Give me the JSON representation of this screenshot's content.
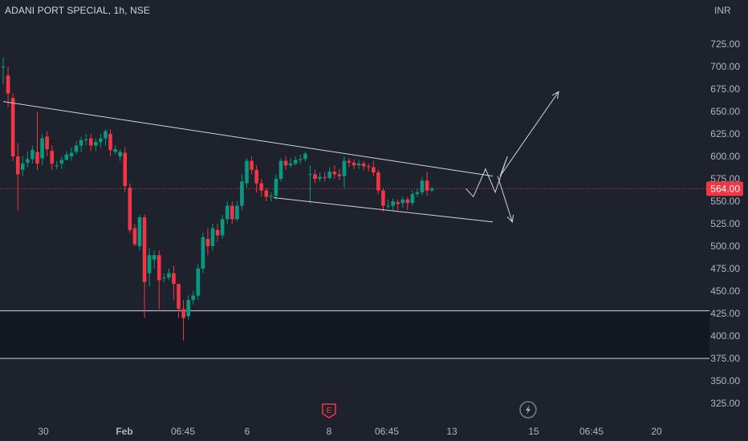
{
  "header": {
    "title": "ADANI PORT SPECIAL, 1h, NSE"
  },
  "currency": "INR",
  "colors": {
    "background": "#1e222d",
    "up": "#089981",
    "down": "#f23645",
    "drawing": "#d1d4dc",
    "price_line": "#f23645"
  },
  "icons": [
    "earnings-icon",
    "lightning-icon"
  ],
  "chart_data": {
    "type": "candlestick",
    "title": "ADANI PORT SPECIAL, 1h, NSE",
    "ylim": [
      300,
      763
    ],
    "y_ticks": [
      "725.00",
      "700.00",
      "675.00",
      "650.00",
      "625.00",
      "600.00",
      "575.00",
      "550.00",
      "525.00",
      "500.00",
      "475.00",
      "450.00",
      "425.00",
      "400.00",
      "375.00",
      "350.00",
      "325.00"
    ],
    "y_tick_values": [
      725,
      700,
      675,
      650,
      625,
      600,
      575,
      550,
      525,
      500,
      475,
      450,
      425,
      400,
      375,
      350,
      325
    ],
    "x_ticks": [
      "30",
      "Feb",
      "06:45",
      "6",
      "8",
      "06:45",
      "13",
      "15",
      "06:45",
      "20"
    ],
    "bold_x_ticks": [
      "Feb"
    ],
    "last_price": "564.00",
    "last_price_value": 564,
    "horizontal_levels": [
      428,
      375
    ],
    "zone": [
      375,
      428
    ],
    "candles": [
      [
        700,
        700,
        680,
        710
      ],
      [
        690,
        670,
        655,
        700
      ],
      [
        665,
        600,
        595,
        670
      ],
      [
        600,
        580,
        540,
        615
      ],
      [
        585,
        592,
        578,
        600
      ],
      [
        593,
        597,
        588,
        605
      ],
      [
        597,
        607,
        592,
        612
      ],
      [
        605,
        592,
        585,
        650
      ],
      [
        598,
        620,
        590,
        625
      ],
      [
        622,
        608,
        600,
        628
      ],
      [
        606,
        592,
        585,
        612
      ],
      [
        590,
        590,
        586,
        595
      ],
      [
        592,
        596,
        586,
        600
      ],
      [
        596,
        602,
        596,
        606
      ],
      [
        600,
        604,
        595,
        610
      ],
      [
        605,
        612,
        602,
        617
      ],
      [
        612,
        618,
        605,
        622
      ],
      [
        618,
        619,
        612,
        625
      ],
      [
        620,
        612,
        606,
        625
      ],
      [
        612,
        616,
        606,
        620
      ],
      [
        616,
        620,
        610,
        625
      ],
      [
        620,
        628,
        612,
        630
      ],
      [
        625,
        607,
        600,
        630
      ],
      [
        605,
        608,
        602,
        612
      ],
      [
        600,
        605,
        595,
        608
      ],
      [
        604,
        567,
        560,
        610
      ],
      [
        565,
        518,
        515,
        570
      ],
      [
        520,
        502,
        500,
        525
      ],
      [
        500,
        532,
        495,
        535
      ],
      [
        532,
        460,
        420,
        535
      ],
      [
        470,
        490,
        455,
        498
      ],
      [
        485,
        490,
        475,
        495
      ],
      [
        490,
        462,
        430,
        495
      ],
      [
        465,
        465,
        460,
        470
      ],
      [
        465,
        470,
        462,
        475
      ],
      [
        470,
        458,
        440,
        478
      ],
      [
        458,
        430,
        420,
        458
      ],
      [
        430,
        420,
        395,
        440
      ],
      [
        422,
        440,
        418,
        445
      ],
      [
        440,
        445,
        435,
        450
      ],
      [
        445,
        475,
        440,
        480
      ],
      [
        475,
        510,
        470,
        515
      ],
      [
        508,
        500,
        490,
        520
      ],
      [
        500,
        520,
        495,
        525
      ],
      [
        518,
        512,
        505,
        525
      ],
      [
        512,
        530,
        508,
        535
      ],
      [
        530,
        545,
        525,
        550
      ],
      [
        545,
        530,
        525,
        550
      ],
      [
        530,
        545,
        528,
        550
      ],
      [
        545,
        572,
        540,
        580
      ],
      [
        570,
        595,
        565,
        598
      ],
      [
        595,
        585,
        580,
        600
      ],
      [
        585,
        570,
        560,
        590
      ],
      [
        570,
        562,
        555,
        575
      ],
      [
        562,
        555,
        550,
        565
      ],
      [
        555,
        556,
        550,
        560
      ],
      [
        556,
        575,
        552,
        580
      ],
      [
        575,
        595,
        572,
        598
      ],
      [
        595,
        590,
        585,
        600
      ],
      [
        590,
        592,
        587,
        598
      ],
      [
        592,
        596,
        590,
        600
      ],
      [
        596,
        597,
        592,
        602
      ],
      [
        597,
        603,
        594,
        605
      ],
      [
        580,
        580,
        548,
        590
      ],
      [
        580,
        575,
        570,
        585
      ],
      [
        575,
        577,
        572,
        582
      ],
      [
        577,
        576,
        572,
        582
      ],
      [
        576,
        583,
        574,
        588
      ],
      [
        583,
        580,
        575,
        590
      ],
      [
        580,
        578,
        574,
        586
      ],
      [
        578,
        595,
        565,
        600
      ],
      [
        595,
        593,
        588,
        598
      ],
      [
        593,
        590,
        586,
        597
      ],
      [
        590,
        592,
        586,
        596
      ],
      [
        592,
        589,
        585,
        595
      ],
      [
        589,
        588,
        583,
        592
      ],
      [
        588,
        582,
        578,
        595
      ],
      [
        582,
        562,
        558,
        585
      ],
      [
        562,
        545,
        538,
        565
      ],
      [
        545,
        545,
        542,
        552
      ],
      [
        545,
        550,
        540,
        553
      ],
      [
        549,
        547,
        540,
        552
      ],
      [
        548,
        552,
        543,
        555
      ],
      [
        552,
        548,
        540,
        555
      ],
      [
        548,
        558,
        545,
        562
      ],
      [
        558,
        560,
        555,
        564
      ],
      [
        560,
        573,
        557,
        577
      ],
      [
        573,
        562,
        556,
        583
      ],
      [
        562,
        564,
        560,
        566
      ]
    ],
    "drawings": {
      "upper_trendline": [
        [
          0.0,
          661
        ],
        [
          100.5,
          578
        ]
      ],
      "lower_trendline": [
        [
          55.5,
          554
        ],
        [
          100.5,
          527
        ]
      ],
      "zigzag": [
        [
          95.0,
          564
        ],
        [
          96.5,
          555
        ],
        [
          99.0,
          586
        ],
        [
          101.0,
          560
        ],
        [
          103.5,
          600
        ],
        [
          102.0,
          578
        ],
        [
          114.0,
          672
        ]
      ],
      "down_arrow": [
        [
          101.5,
          578
        ],
        [
          104.5,
          527
        ]
      ]
    }
  }
}
